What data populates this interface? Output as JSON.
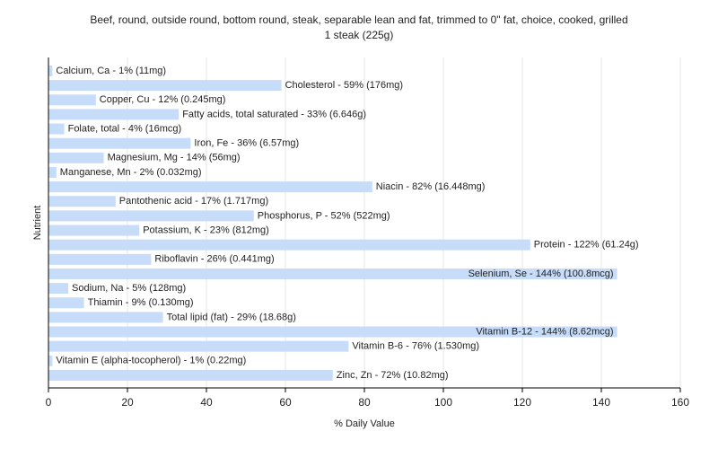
{
  "chart_data": {
    "type": "bar",
    "orientation": "horizontal",
    "title": "Beef, round, outside round, bottom round, steak, separable lean and fat, trimmed to 0\" fat, choice, cooked, grilled",
    "subtitle": "1 steak (225g)",
    "x_label": "% Daily Value",
    "y_label": "Nutrient",
    "color": "#c6dcf8",
    "grid": true,
    "xlim": [
      0,
      160
    ],
    "xticks": [
      0,
      20,
      40,
      60,
      80,
      100,
      120,
      140,
      160
    ],
    "values": [
      1,
      59,
      12,
      33,
      4,
      36,
      14,
      2,
      82,
      17,
      52,
      23,
      122,
      26,
      144,
      5,
      9,
      29,
      144,
      76,
      1,
      72
    ],
    "value_labels": [
      "Calcium, Ca - 1% (11mg)",
      "Cholesterol - 59% (176mg)",
      "Copper, Cu - 12% (0.245mg)",
      "Fatty acids, total saturated - 33% (6.646g)",
      "Folate, total - 4% (16mcg)",
      "Iron, Fe - 36% (6.57mg)",
      "Magnesium, Mg - 14% (56mg)",
      "Manganese, Mn - 2% (0.032mg)",
      "Niacin - 82% (16.448mg)",
      "Pantothenic acid - 17% (1.717mg)",
      "Phosphorus, P - 52% (522mg)",
      "Potassium, K - 23% (812mg)",
      "Protein - 122% (61.24g)",
      "Riboflavin - 26% (0.441mg)",
      "Selenium, Se - 144% (100.8mcg)",
      "Sodium, Na - 5% (128mg)",
      "Thiamin - 9% (0.130mg)",
      "Total lipid (fat) - 29% (18.68g)",
      "Vitamin B-12 - 144% (8.62mcg)",
      "Vitamin B-6 - 76% (1.530mg)",
      "Vitamin E (alpha-tocopherol) - 1% (0.22mg)",
      "Zinc, Zn - 72% (10.82mg)"
    ]
  }
}
